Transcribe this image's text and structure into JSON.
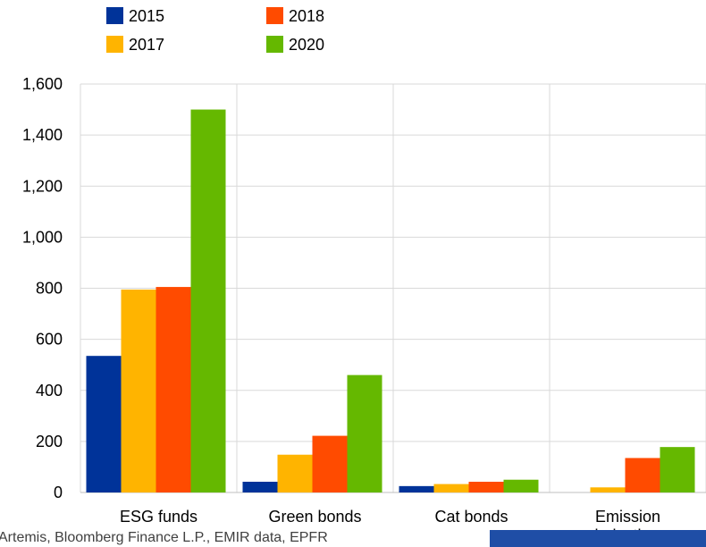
{
  "colors": {
    "background": "#ffffff",
    "grid": "#d9d9d9",
    "axis": "#bfbfbf",
    "footer_band": "#1f4ea6"
  },
  "source": "Artemis, Bloomberg Finance L.P., EMIR data, EPFR",
  "chart_data": {
    "type": "bar",
    "categories": [
      "ESG funds",
      "Green bonds",
      "Cat bonds",
      "Emission derivatives"
    ],
    "category_lines": [
      [
        "ESG funds"
      ],
      [
        "Green bonds"
      ],
      [
        "Cat bonds"
      ],
      [
        "Emission",
        "derivatives"
      ]
    ],
    "series": [
      {
        "name": "2015",
        "color": "#003399",
        "values": [
          535,
          42,
          25,
          0
        ]
      },
      {
        "name": "2017",
        "color": "#ffb400",
        "values": [
          795,
          148,
          33,
          20
        ]
      },
      {
        "name": "2018",
        "color": "#ff4b00",
        "values": [
          805,
          222,
          42,
          135
        ]
      },
      {
        "name": "2020",
        "color": "#65b800",
        "values": [
          1500,
          460,
          50,
          178
        ]
      }
    ],
    "legend_order": [
      "2015",
      "2018",
      "2017",
      "2020"
    ],
    "legend_position": "top-left",
    "ylim": [
      0,
      1600
    ],
    "yticks": [
      0,
      200,
      400,
      600,
      800,
      1000,
      1200,
      1400,
      1600
    ],
    "ytick_labels": [
      "0",
      "200",
      "400",
      "600",
      "800",
      "1,000",
      "1,200",
      "1,400",
      "1,600"
    ],
    "grid": true,
    "title": "",
    "xlabel": "",
    "ylabel": ""
  }
}
